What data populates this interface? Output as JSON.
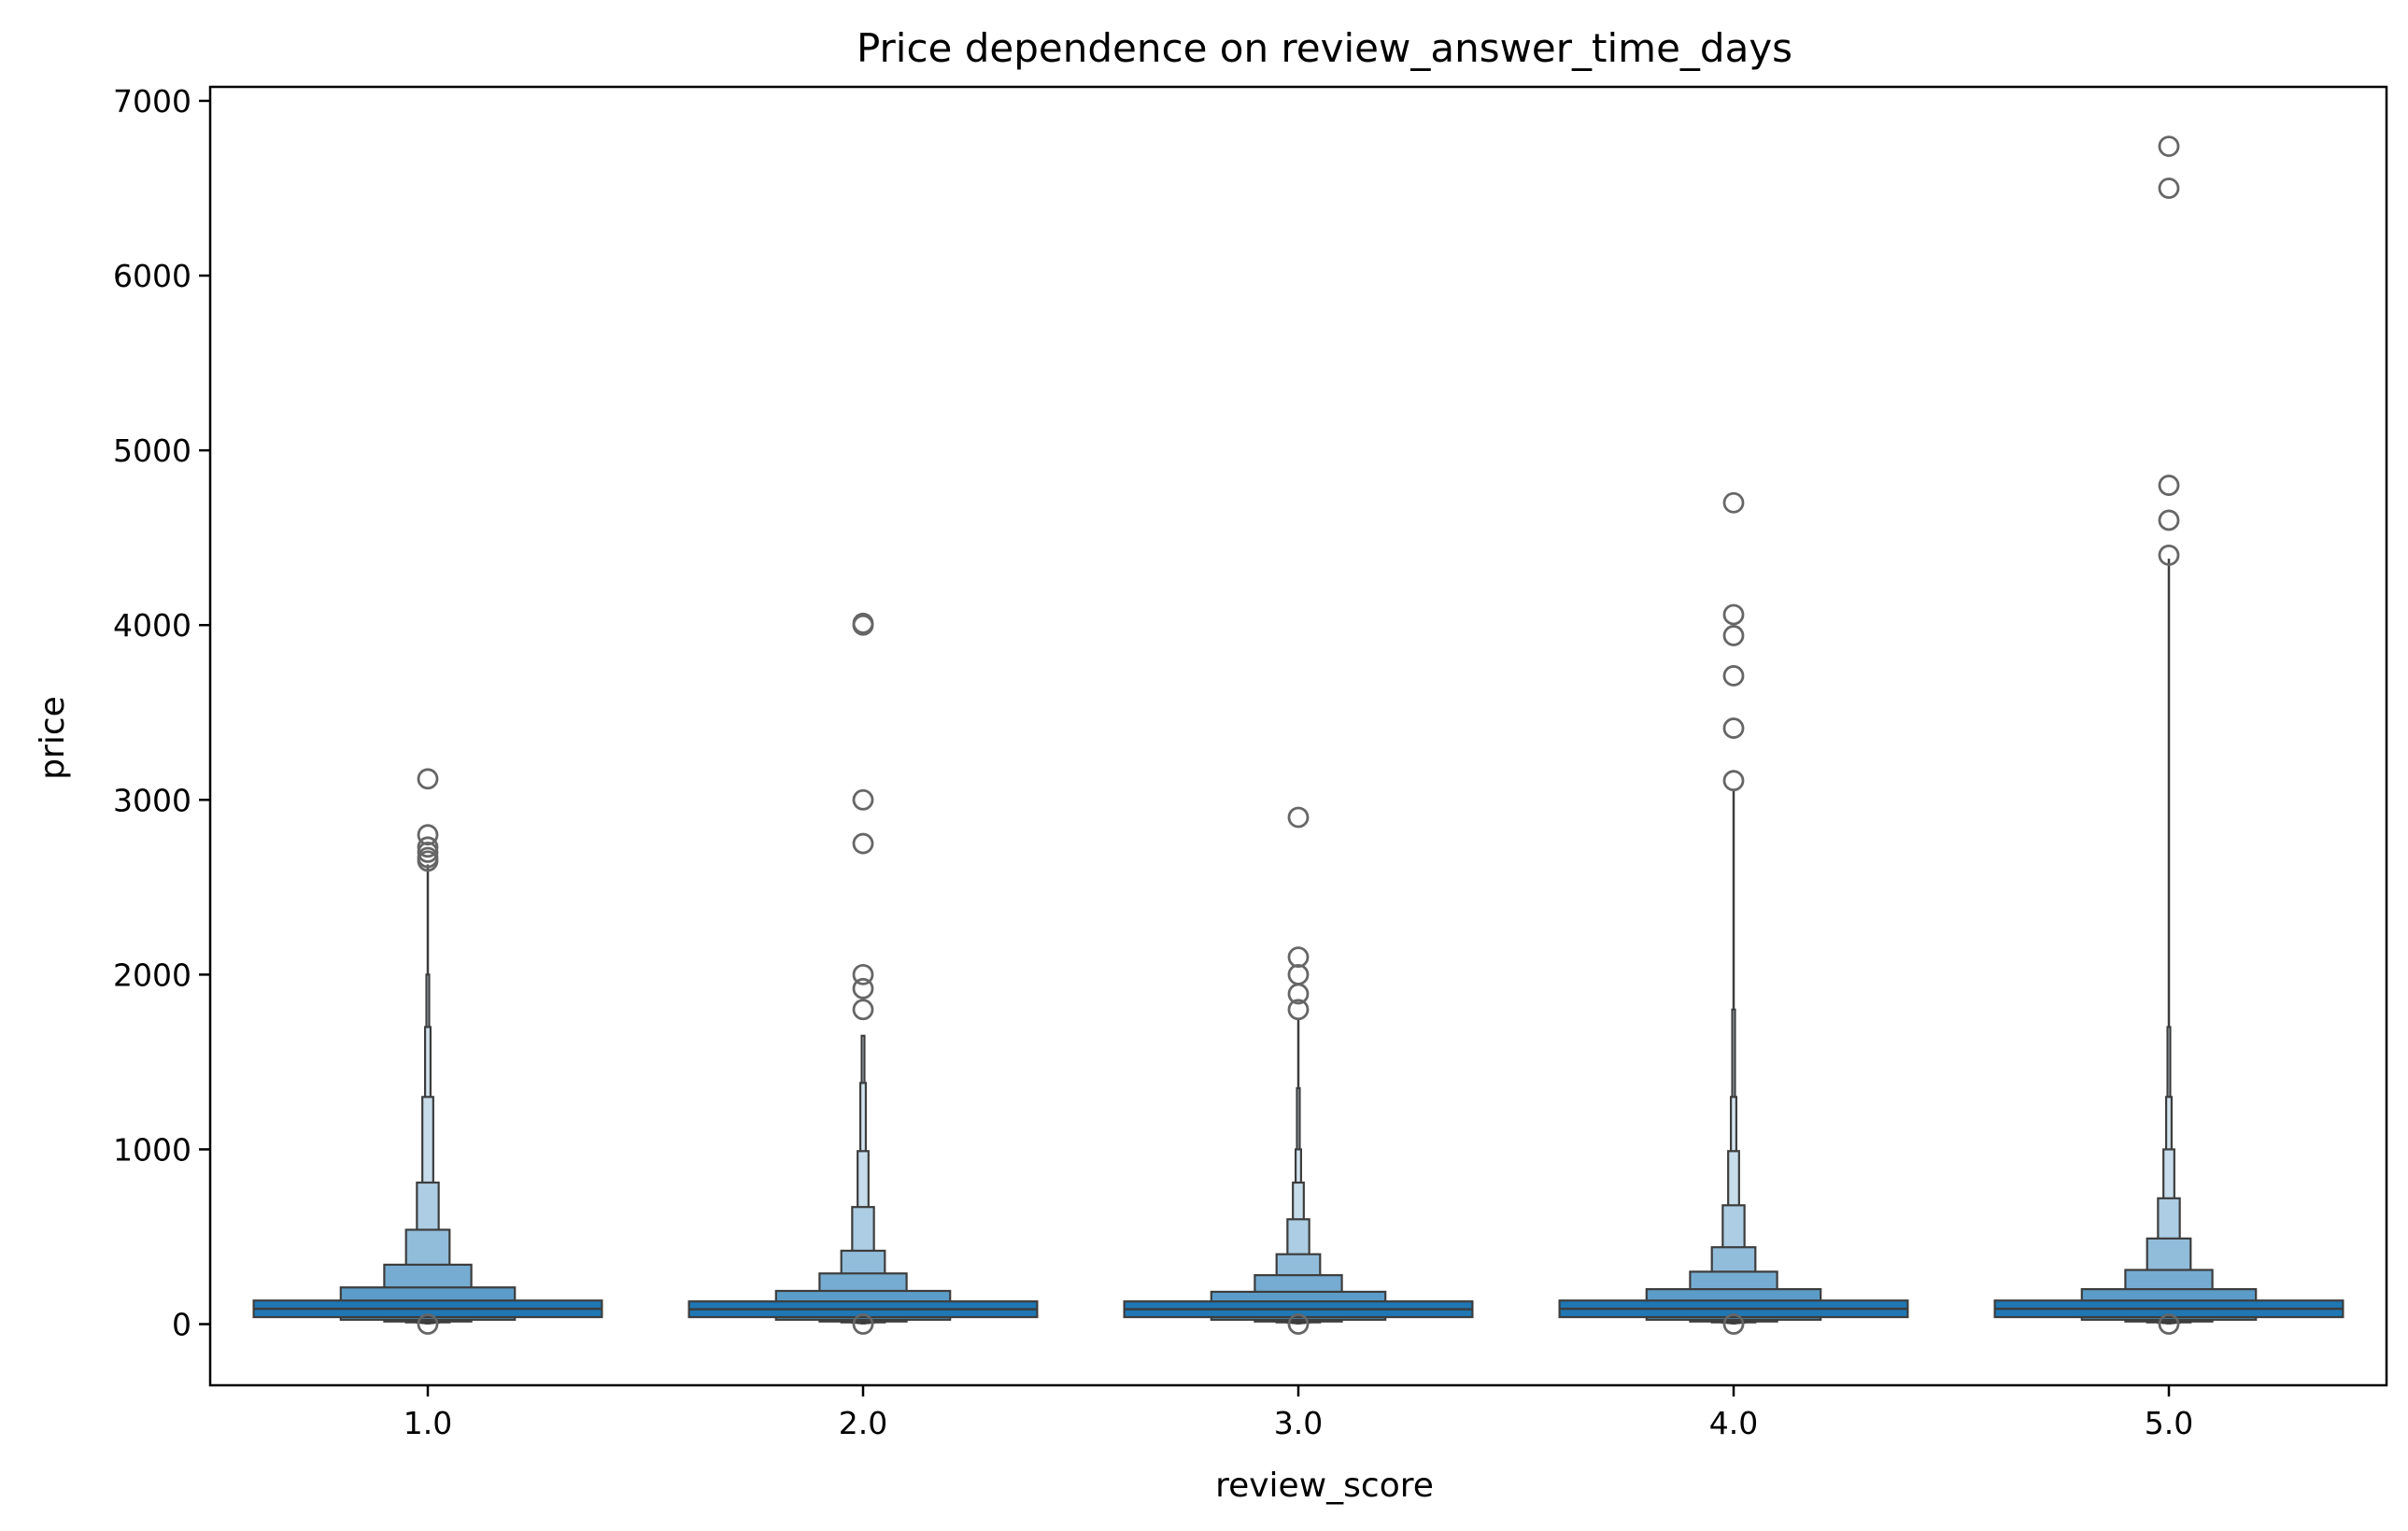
{
  "chart_data": {
    "type": "boxen",
    "title": "Price dependence on review_answer_time_days",
    "xlabel": "review_score",
    "ylabel": "price",
    "ylim": [
      -350,
      7080
    ],
    "yticks": [
      0,
      1000,
      2000,
      3000,
      4000,
      5000,
      6000,
      7000
    ],
    "categories": [
      "1.0",
      "2.0",
      "3.0",
      "4.0",
      "5.0"
    ],
    "grid": false,
    "legend": "none",
    "colors": {
      "box": "#1f77b4",
      "edge": "#3d3d3d",
      "outlier": "#666666"
    },
    "series": [
      {
        "category": "1.0",
        "levels": [
          {
            "lo": 40,
            "hi": 135
          },
          {
            "lo": 25,
            "hi": 210
          },
          {
            "lo": 15,
            "hi": 340
          },
          {
            "lo": 10,
            "hi": 540
          },
          {
            "lo": 8,
            "hi": 810
          },
          {
            "lo": 6,
            "hi": 1300
          },
          {
            "lo": 5,
            "hi": 1700
          },
          {
            "lo": 4,
            "hi": 2000
          }
        ],
        "whisker_top": 2630,
        "outliers": [
          0,
          2650,
          2670,
          2700,
          2730,
          2800,
          3120
        ]
      },
      {
        "category": "2.0",
        "levels": [
          {
            "lo": 40,
            "hi": 130
          },
          {
            "lo": 25,
            "hi": 190
          },
          {
            "lo": 15,
            "hi": 290
          },
          {
            "lo": 10,
            "hi": 420
          },
          {
            "lo": 8,
            "hi": 670
          },
          {
            "lo": 6,
            "hi": 990
          },
          {
            "lo": 5,
            "hi": 1380
          },
          {
            "lo": 4,
            "hi": 1650
          }
        ],
        "whisker_top": 1650,
        "outliers": [
          0,
          1800,
          1920,
          2000,
          2750,
          3000,
          4000,
          4010
        ]
      },
      {
        "category": "3.0",
        "levels": [
          {
            "lo": 40,
            "hi": 130
          },
          {
            "lo": 25,
            "hi": 185
          },
          {
            "lo": 15,
            "hi": 280
          },
          {
            "lo": 10,
            "hi": 400
          },
          {
            "lo": 8,
            "hi": 600
          },
          {
            "lo": 6,
            "hi": 810
          },
          {
            "lo": 5,
            "hi": 1000
          },
          {
            "lo": 4,
            "hi": 1350
          }
        ],
        "whisker_top": 1750,
        "outliers": [
          0,
          1800,
          1890,
          2000,
          2100,
          2900
        ]
      },
      {
        "category": "4.0",
        "levels": [
          {
            "lo": 40,
            "hi": 135
          },
          {
            "lo": 25,
            "hi": 200
          },
          {
            "lo": 15,
            "hi": 300
          },
          {
            "lo": 10,
            "hi": 440
          },
          {
            "lo": 8,
            "hi": 680
          },
          {
            "lo": 6,
            "hi": 990
          },
          {
            "lo": 5,
            "hi": 1300
          },
          {
            "lo": 4,
            "hi": 1800
          }
        ],
        "whisker_top": 3050,
        "outliers": [
          0,
          3110,
          3410,
          3710,
          3940,
          4060,
          4700
        ]
      },
      {
        "category": "5.0",
        "levels": [
          {
            "lo": 40,
            "hi": 135
          },
          {
            "lo": 25,
            "hi": 200
          },
          {
            "lo": 15,
            "hi": 310
          },
          {
            "lo": 10,
            "hi": 490
          },
          {
            "lo": 8,
            "hi": 720
          },
          {
            "lo": 6,
            "hi": 1000
          },
          {
            "lo": 5,
            "hi": 1300
          },
          {
            "lo": 4,
            "hi": 1700
          }
        ],
        "whisker_top": 4380,
        "outliers": [
          0,
          4400,
          4600,
          4800,
          6500,
          6740
        ]
      }
    ]
  }
}
